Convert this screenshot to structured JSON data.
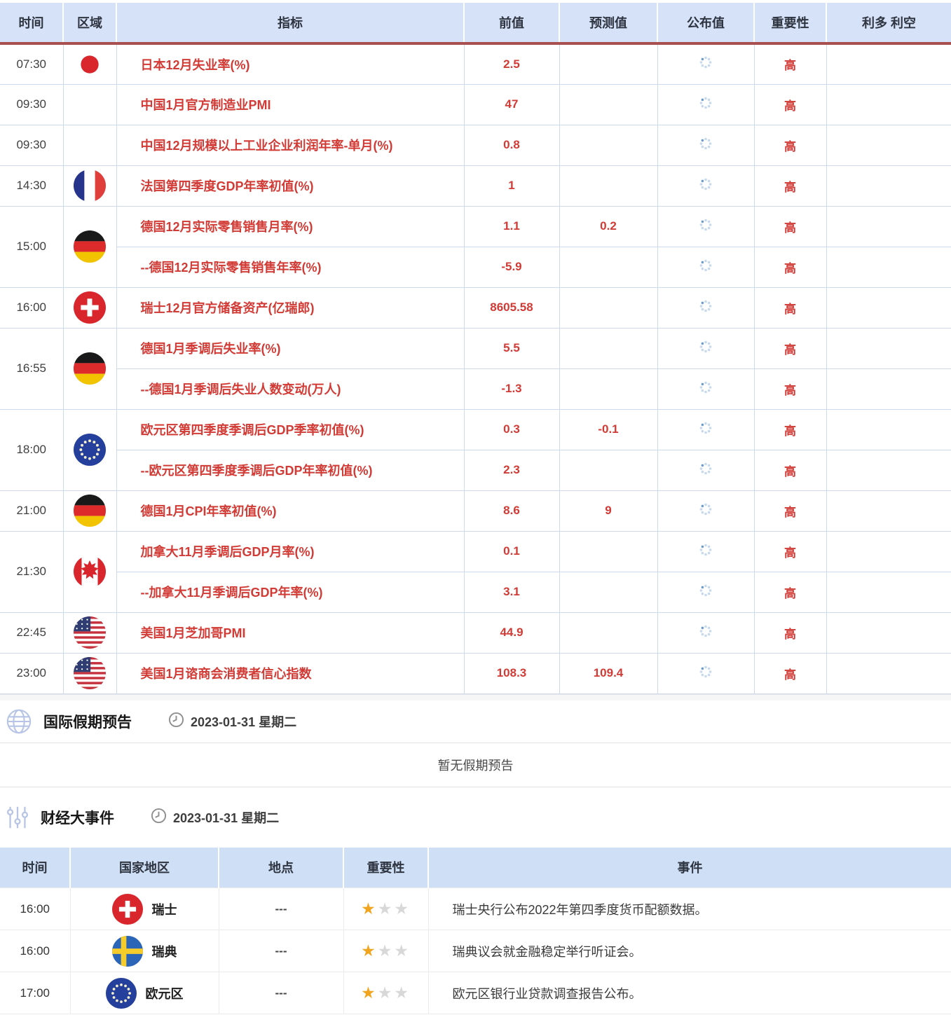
{
  "colors": {
    "accent_red": "#d23b35",
    "header_bg": "#d6e2f8",
    "header_divider": "#a85050",
    "spinner_light": "#c7d9ec",
    "spinner_dark": "#6f9cc9",
    "star_gold": "#f1a51f",
    "star_gray": "#d8d8d8"
  },
  "calendar": {
    "headers": [
      "时间",
      "区域",
      "指标",
      "前值",
      "预测值",
      "公布值",
      "重要性",
      "利多 利空"
    ],
    "rows": [
      {
        "time": "07:30",
        "rowspan": 1,
        "flag": "japan",
        "indicator": "日本12月失业率(%)",
        "previous": "2.5",
        "forecast": "",
        "published": "loading",
        "importance": "高",
        "bias": ""
      },
      {
        "time": "09:30",
        "rowspan": 1,
        "flag": null,
        "indicator": "中国1月官方制造业PMI",
        "previous": "47",
        "forecast": "",
        "published": "loading",
        "importance": "高",
        "bias": ""
      },
      {
        "time": "09:30",
        "rowspan": 1,
        "flag": null,
        "indicator": "中国12月规模以上工业企业利润年率-单月(%)",
        "previous": "0.8",
        "forecast": "",
        "published": "loading",
        "importance": "高",
        "bias": ""
      },
      {
        "time": "14:30",
        "rowspan": 1,
        "flag": "france",
        "indicator": "法国第四季度GDP年率初值(%)",
        "previous": "1",
        "forecast": "",
        "published": "loading",
        "importance": "高",
        "bias": ""
      },
      {
        "time": "15:00",
        "rowspan": 2,
        "flag": "germany",
        "indicator": "德国12月实际零售销售月率(%)",
        "previous": "1.1",
        "forecast": "0.2",
        "published": "loading",
        "importance": "高",
        "bias": ""
      },
      {
        "time": null,
        "rowspan": 1,
        "flag": null,
        "indicator": "--德国12月实际零售销售年率(%)",
        "previous": "-5.9",
        "forecast": "",
        "published": "loading",
        "importance": "高",
        "bias": ""
      },
      {
        "time": "16:00",
        "rowspan": 1,
        "flag": "switzerland",
        "indicator": "瑞士12月官方储备资产(亿瑞郎)",
        "previous": "8605.58",
        "forecast": "",
        "published": "loading",
        "importance": "高",
        "bias": ""
      },
      {
        "time": "16:55",
        "rowspan": 2,
        "flag": "germany",
        "indicator": "德国1月季调后失业率(%)",
        "previous": "5.5",
        "forecast": "",
        "published": "loading",
        "importance": "高",
        "bias": ""
      },
      {
        "time": null,
        "rowspan": 1,
        "flag": null,
        "indicator": "--德国1月季调后失业人数变动(万人)",
        "previous": "-1.3",
        "forecast": "",
        "published": "loading",
        "importance": "高",
        "bias": ""
      },
      {
        "time": "18:00",
        "rowspan": 2,
        "flag": "eu",
        "indicator": "欧元区第四季度季调后GDP季率初值(%)",
        "previous": "0.3",
        "forecast": "-0.1",
        "published": "loading",
        "importance": "高",
        "bias": ""
      },
      {
        "time": null,
        "rowspan": 1,
        "flag": null,
        "indicator": "--欧元区第四季度季调后GDP年率初值(%)",
        "previous": "2.3",
        "forecast": "",
        "published": "loading",
        "importance": "高",
        "bias": ""
      },
      {
        "time": "21:00",
        "rowspan": 1,
        "flag": "germany",
        "indicator": "德国1月CPI年率初值(%)",
        "previous": "8.6",
        "forecast": "9",
        "published": "loading",
        "importance": "高",
        "bias": ""
      },
      {
        "time": "21:30",
        "rowspan": 2,
        "flag": "canada",
        "indicator": "加拿大11月季调后GDP月率(%)",
        "previous": "0.1",
        "forecast": "",
        "published": "loading",
        "importance": "高",
        "bias": ""
      },
      {
        "time": null,
        "rowspan": 1,
        "flag": null,
        "indicator": "--加拿大11月季调后GDP年率(%)",
        "previous": "3.1",
        "forecast": "",
        "published": "loading",
        "importance": "高",
        "bias": ""
      },
      {
        "time": "22:45",
        "rowspan": 1,
        "flag": "us",
        "indicator": "美国1月芝加哥PMI",
        "previous": "44.9",
        "forecast": "",
        "published": "loading",
        "importance": "高",
        "bias": ""
      },
      {
        "time": "23:00",
        "rowspan": 1,
        "flag": "us",
        "indicator": "美国1月谘商会消费者信心指数",
        "previous": "108.3",
        "forecast": "109.4",
        "published": "loading",
        "importance": "高",
        "bias": ""
      }
    ]
  },
  "holiday_section": {
    "title": "国际假期预告",
    "date": "2023-01-31 星期二",
    "empty_text": "暂无假期预告"
  },
  "events_section": {
    "title": "财经大事件",
    "date": "2023-01-31 星期二",
    "headers": [
      "时间",
      "国家地区",
      "地点",
      "重要性",
      "事件"
    ],
    "rows": [
      {
        "time": "16:00",
        "flag": "switzerland",
        "country": "瑞士",
        "location": "---",
        "importance": 1,
        "importance_max": 3,
        "event": "瑞士央行公布2022年第四季度货币配额数据。"
      },
      {
        "time": "16:00",
        "flag": "sweden",
        "country": "瑞典",
        "location": "---",
        "importance": 1,
        "importance_max": 3,
        "event": "瑞典议会就金融稳定举行听证会。"
      },
      {
        "time": "17:00",
        "flag": "eu",
        "country": "欧元区",
        "location": "---",
        "importance": 1,
        "importance_max": 3,
        "event": "欧元区银行业贷款调查报告公布。"
      }
    ]
  }
}
